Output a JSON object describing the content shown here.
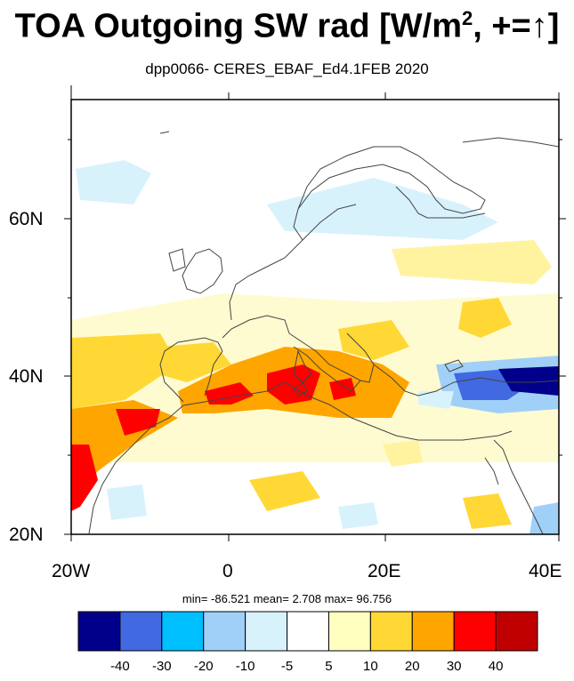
{
  "title": {
    "main": "TOA Outgoing SW rad [W/m",
    "sup": "2",
    "tail": ", +=↑]"
  },
  "subtitle": "dpp0066- CERES_EBAF_Ed4.1FEB 2020",
  "map": {
    "projection": "cylindrical-equidistant",
    "lon_range": [
      -20,
      40
    ],
    "lat_range": [
      20,
      75
    ],
    "lat_ticks": [
      "20N",
      "40N",
      "60N"
    ],
    "lon_ticks": [
      "20W",
      "0",
      "20E",
      "40E"
    ]
  },
  "stats": {
    "text": "min= -86.521  mean=   2.708  max= 96.756"
  },
  "colorbar": {
    "colors": [
      "#00008b",
      "#4169e1",
      "#00bfff",
      "#a0d0f8",
      "#d8f2fc",
      "#ffffff",
      "#ffffc0",
      "#ffd835",
      "#ffa500",
      "#ff0000",
      "#c00000"
    ],
    "labels": [
      "-40",
      "-30",
      "-20",
      "-10",
      "-5",
      "5",
      "10",
      "20",
      "30",
      "40"
    ]
  }
}
